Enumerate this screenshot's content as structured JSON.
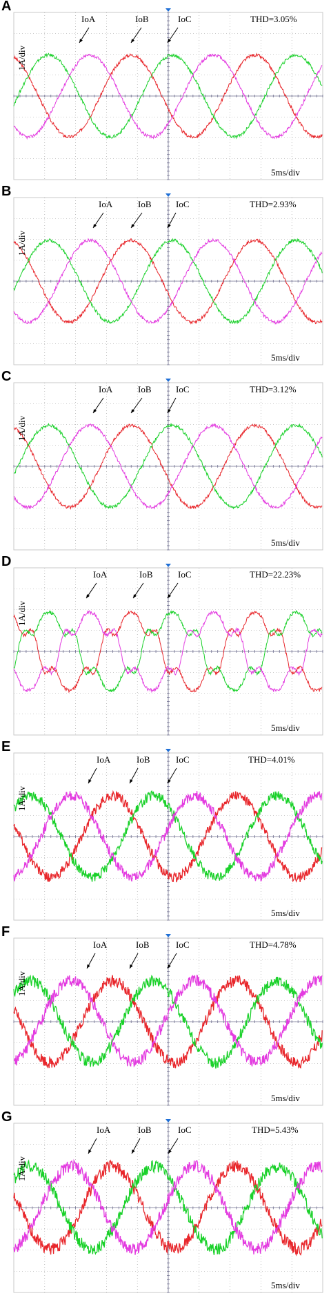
{
  "colors": {
    "IoA": "#e8262b",
    "IoB": "#1ad12a",
    "IoC": "#e33be0",
    "grid": "#9a9a9a",
    "trigger": "#1f6fd6"
  },
  "chart_data": [
    {
      "panel": "A",
      "type": "line",
      "title": "",
      "thd": "THD=3.05%",
      "yscale": "1A/div",
      "xscale": "5ms/div",
      "series": [
        {
          "name": "IoA",
          "phase_deg": 0
        },
        {
          "name": "IoB",
          "phase_deg": -120
        },
        {
          "name": "IoC",
          "phase_deg": 120
        }
      ],
      "period_div": 4,
      "amplitude_div": 2,
      "noise": 0.04,
      "harmonics": 0
    },
    {
      "panel": "B",
      "type": "line",
      "title": "",
      "thd": "THD=2.93%",
      "yscale": "1A/div",
      "xscale": "5ms/div",
      "series": [
        {
          "name": "IoA",
          "phase_deg": 0
        },
        {
          "name": "IoB",
          "phase_deg": -120
        },
        {
          "name": "IoC",
          "phase_deg": 120
        }
      ],
      "period_div": 4,
      "amplitude_div": 2,
      "noise": 0.04,
      "harmonics": 0
    },
    {
      "panel": "C",
      "type": "line",
      "title": "",
      "thd": "THD=3.12%",
      "yscale": "1A/div",
      "xscale": "5ms/div",
      "series": [
        {
          "name": "IoA",
          "phase_deg": 0
        },
        {
          "name": "IoB",
          "phase_deg": -120
        },
        {
          "name": "IoC",
          "phase_deg": 120
        }
      ],
      "period_div": 4,
      "amplitude_div": 2,
      "noise": 0.04,
      "harmonics": 0
    },
    {
      "panel": "D",
      "type": "line",
      "title": "",
      "thd": "THD=22.23%",
      "yscale": "1A/div",
      "xscale": "5ms/div",
      "series": [
        {
          "name": "IoA",
          "phase_deg": 0
        },
        {
          "name": "IoB",
          "phase_deg": -120
        },
        {
          "name": "IoC",
          "phase_deg": 120
        }
      ],
      "period_div": 4,
      "amplitude_div": 2,
      "noise": 0.05,
      "harmonics": 0.22
    },
    {
      "panel": "E",
      "type": "line",
      "title": "",
      "thd": "THD=4.01%",
      "yscale": "1A/div",
      "xscale": "5ms/div",
      "series": [
        {
          "name": "IoA",
          "phase_deg": 0
        },
        {
          "name": "IoB",
          "phase_deg": -120
        },
        {
          "name": "IoC",
          "phase_deg": 120
        }
      ],
      "period_div": 4,
      "amplitude_div": 2,
      "noise": 0.12,
      "harmonics": 0
    },
    {
      "panel": "F",
      "type": "line",
      "title": "",
      "thd": "THD=4.78%",
      "yscale": "1A/div",
      "xscale": "5ms/div",
      "series": [
        {
          "name": "IoA",
          "phase_deg": 0
        },
        {
          "name": "IoB",
          "phase_deg": -120
        },
        {
          "name": "IoC",
          "phase_deg": 120
        }
      ],
      "period_div": 4,
      "amplitude_div": 2,
      "noise": 0.14,
      "harmonics": 0
    },
    {
      "panel": "G",
      "type": "line",
      "title": "",
      "thd": "THD=5.43%",
      "yscale": "1A/div",
      "xscale": "5ms/div",
      "series": [
        {
          "name": "IoA",
          "phase_deg": 0
        },
        {
          "name": "IoB",
          "phase_deg": -120
        },
        {
          "name": "IoC",
          "phase_deg": 120
        }
      ],
      "period_div": 4,
      "amplitude_div": 2,
      "noise": 0.15,
      "harmonics": 0
    }
  ]
}
